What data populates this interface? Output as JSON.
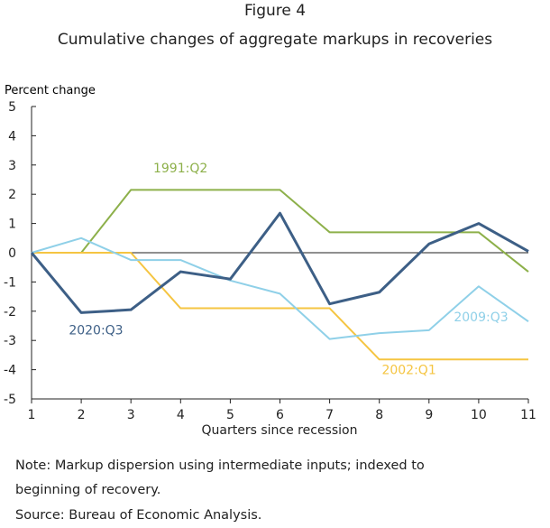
{
  "figure_label": "Figure 4",
  "note_lines": [
    "Note: Markup dispersion using intermediate inputs; indexed to",
    "beginning of recovery.",
    "Source: Bureau of Economic Analysis."
  ],
  "chart_data": {
    "type": "line",
    "title": "Cumulative changes of aggregate markups in recoveries",
    "xlabel": "Quarters since recession",
    "ylabel": "Percent change",
    "x": [
      1,
      2,
      3,
      4,
      5,
      6,
      7,
      8,
      9,
      10,
      11
    ],
    "xlim": [
      1,
      11
    ],
    "ylim": [
      -5,
      5
    ],
    "yticks": [
      -5,
      -4,
      -3,
      -2,
      -1,
      0,
      1,
      2,
      3,
      4,
      5
    ],
    "grid": false,
    "legend": "inline labels",
    "series": [
      {
        "name": "1991:Q2",
        "color": "#8db04a",
        "values": [
          0,
          0,
          2.15,
          2.15,
          2.15,
          2.15,
          0.7,
          0.7,
          0.7,
          0.7,
          -0.65
        ]
      },
      {
        "name": "2002:Q1",
        "color": "#f5c542",
        "values": [
          0,
          0,
          0,
          -1.9,
          -1.9,
          -1.9,
          -1.9,
          -3.65,
          -3.65,
          -3.65,
          -3.65
        ]
      },
      {
        "name": "2009:Q3",
        "color": "#8fd0e8",
        "values": [
          0,
          0.5,
          -0.25,
          -0.25,
          -0.95,
          -1.4,
          -2.95,
          -2.75,
          -2.65,
          -1.15,
          -2.35
        ]
      },
      {
        "name": "2020:Q3",
        "color": "#3d5f86",
        "values": [
          0,
          -2.05,
          -1.95,
          -0.65,
          -0.9,
          1.35,
          -1.75,
          -1.35,
          0.3,
          1.0,
          0.05
        ]
      }
    ]
  }
}
